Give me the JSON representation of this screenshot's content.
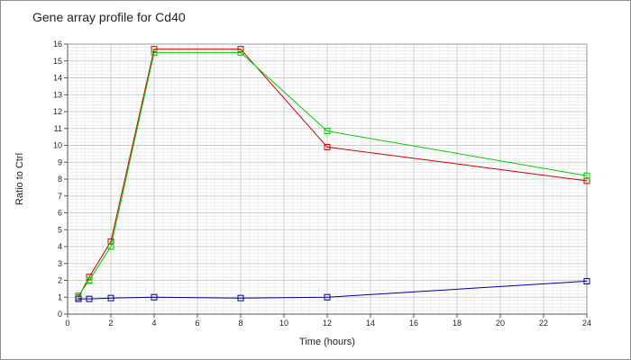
{
  "chart_data": {
    "type": "line",
    "title": "Gene array profile for Cd40",
    "xlabel": "Time (hours)",
    "ylabel": "Ratio to Ctrl",
    "xlim": [
      0,
      24
    ],
    "ylim": [
      0,
      16
    ],
    "x_ticks": [
      0,
      2,
      4,
      6,
      8,
      10,
      12,
      14,
      16,
      18,
      20,
      22,
      24
    ],
    "y_ticks": [
      0,
      1,
      2,
      3,
      4,
      5,
      6,
      7,
      8,
      9,
      10,
      11,
      12,
      13,
      14,
      15,
      16
    ],
    "grid": true,
    "legend": "none",
    "x": [
      0.5,
      1,
      2,
      4,
      8,
      12,
      24
    ],
    "series": [
      {
        "color": "#cc0000",
        "values": [
          1.0,
          2.2,
          4.3,
          15.7,
          15.7,
          9.9,
          7.9
        ]
      },
      {
        "color": "#00cc00",
        "values": [
          1.1,
          2.0,
          4.0,
          15.5,
          15.5,
          10.85,
          8.2
        ]
      },
      {
        "color": "#000099",
        "values": [
          0.9,
          0.9,
          0.95,
          1.0,
          0.95,
          1.0,
          1.95
        ]
      }
    ]
  }
}
